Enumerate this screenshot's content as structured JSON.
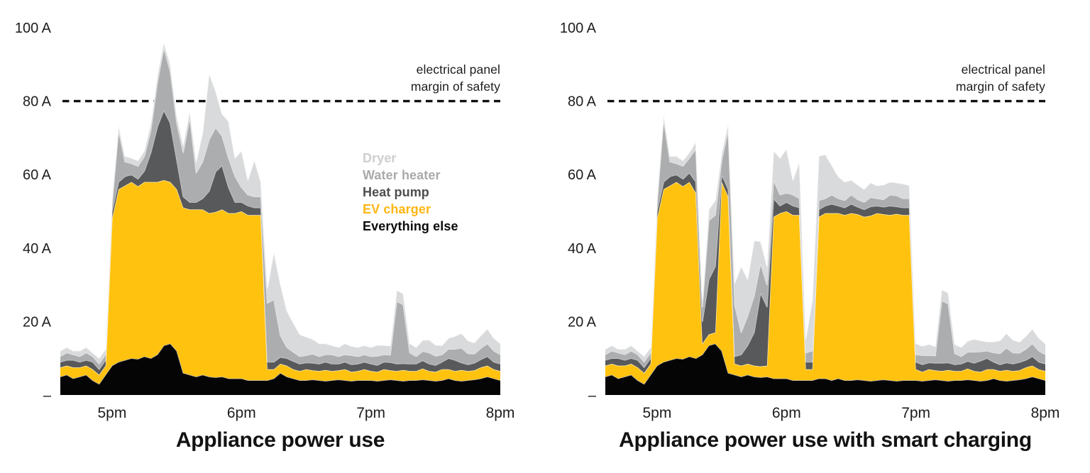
{
  "page": {
    "background": "#ffffff"
  },
  "palette": {
    "axis_text": "#1d1d1f",
    "title_text": "#121212",
    "threshold_line": "#111111",
    "band_edge_highlight": "rgba(255,255,255,0.65)"
  },
  "chart_data": [
    {
      "type": "area",
      "variant": "stacked-area",
      "title": "Appliance power use",
      "unit": "A",
      "x_domain_minutes": [
        0,
        204
      ],
      "step_minutes": 3,
      "x_ticks": [
        {
          "minute": 24,
          "label": "5pm"
        },
        {
          "minute": 84,
          "label": "6pm"
        },
        {
          "minute": 144,
          "label": "7pm"
        },
        {
          "minute": 204,
          "label": "8pm"
        }
      ],
      "y_ticks": [
        {
          "value": 100,
          "label": "100 A"
        },
        {
          "value": 80,
          "label": "80 A"
        },
        {
          "value": 60,
          "label": "60 A"
        },
        {
          "value": 40,
          "label": "40 A"
        },
        {
          "value": 20,
          "label": "20 A"
        },
        {
          "value": 0,
          "label": "–"
        }
      ],
      "ylim": [
        0,
        105
      ],
      "grid": false,
      "threshold": {
        "value": 80,
        "label_line1": "electrical panel",
        "label_line2": "margin of safety"
      },
      "legend_position": "inside-right",
      "legend": [
        {
          "label": "Dryer",
          "color": "#CDCED0"
        },
        {
          "label": "Water heater",
          "color": "#A8AAAC"
        },
        {
          "label": "Heat pump",
          "color": "#4D4E50"
        },
        {
          "label": "EV charger",
          "color": "#FFB612"
        },
        {
          "label": "Everything else",
          "color": "#0B0B0B"
        }
      ],
      "series": [
        {
          "name": "everything_else",
          "label": "Everything else",
          "color": "#050505",
          "values": [
            5,
            5.5,
            4.5,
            5,
            5.5,
            4,
            3,
            5.5,
            8,
            9,
            9.5,
            10,
            9.8,
            10.5,
            10,
            11,
            13.5,
            14,
            12,
            6,
            5.5,
            5,
            5.5,
            5,
            4.8,
            5,
            4.5,
            4.5,
            4.5,
            4,
            4,
            4,
            4,
            4.5,
            6,
            5,
            4.5,
            4,
            4,
            4.2,
            4,
            3.8,
            4,
            4.2,
            4,
            3.8,
            4,
            4,
            4,
            3.8,
            4,
            4.2,
            4,
            3.8,
            4,
            4,
            4.2,
            4,
            3.8,
            4,
            4.5,
            4,
            3.8,
            4,
            4.2,
            4.5,
            5,
            4.5,
            4
          ]
        },
        {
          "name": "ev_charger",
          "label": "EV charger",
          "color": "#FFC20E",
          "values": [
            2.5,
            2.5,
            3,
            2.5,
            2.5,
            3,
            2.5,
            2.5,
            40,
            47,
            47.5,
            48,
            47,
            47.5,
            48,
            47,
            45,
            44,
            44,
            45,
            45,
            45.5,
            45,
            44.5,
            45,
            45.5,
            45,
            45,
            45.5,
            45,
            45,
            45,
            3,
            2.5,
            2.5,
            3,
            2.5,
            2.5,
            3,
            2.5,
            2.5,
            3,
            2.5,
            2.5,
            3,
            2.5,
            2.5,
            3,
            2.5,
            2.5,
            3,
            2.5,
            2.5,
            3,
            2.5,
            2.5,
            3,
            2.5,
            2.5,
            3,
            2.5,
            2.5,
            3,
            2.5,
            2.5,
            3,
            3,
            2.5,
            2.5
          ]
        },
        {
          "name": "heat_pump",
          "label": "Heat pump",
          "color": "#58595B",
          "values": [
            1.5,
            1.5,
            2,
            1.5,
            1.5,
            2,
            1.5,
            1.5,
            2,
            2,
            2.5,
            2,
            2,
            3,
            8,
            15,
            19,
            16,
            8,
            3,
            2,
            2,
            3,
            6,
            11,
            12,
            7,
            3,
            2.5,
            2.5,
            2,
            2,
            2,
            2,
            1.8,
            2,
            2.2,
            2,
            1.8,
            2,
            2,
            2.2,
            2,
            1.8,
            2,
            2,
            2,
            2,
            2,
            1.8,
            2,
            2.2,
            2,
            1.8,
            2,
            2,
            2.2,
            2,
            1.8,
            2,
            3,
            3,
            2,
            1.8,
            2,
            2.2,
            2.5,
            2,
            2
          ]
        },
        {
          "name": "water_heater",
          "label": "Water heater",
          "color": "#ABADAF",
          "values": [
            1.5,
            2,
            1.5,
            1.5,
            2,
            1.5,
            1.5,
            1.5,
            2,
            14,
            4,
            3,
            3.5,
            4,
            6,
            12,
            17,
            14,
            10,
            12,
            23,
            8,
            10,
            14,
            12,
            8,
            8,
            7,
            4,
            3,
            3,
            3,
            16,
            17,
            6,
            3,
            2.5,
            2,
            2,
            2.5,
            2,
            2,
            2.5,
            2,
            2,
            2.5,
            2,
            2,
            2,
            2.5,
            2,
            2,
            17,
            16,
            3,
            2,
            2.5,
            3,
            2.5,
            2,
            2.5,
            3,
            4,
            3,
            2.5,
            3,
            3.5,
            3,
            2.5
          ]
        },
        {
          "name": "dryer",
          "label": "Dryer",
          "color": "#D9DADB",
          "values": [
            1.5,
            1.5,
            1,
            1.5,
            1.5,
            1,
            1.5,
            1.5,
            1.5,
            1.5,
            1.5,
            1.5,
            1.5,
            1.5,
            2,
            2,
            1.5,
            2,
            2,
            2,
            2,
            3,
            8,
            18,
            10,
            6,
            10,
            5,
            10,
            4,
            10,
            4,
            4,
            13,
            14,
            10,
            8,
            6,
            5,
            4,
            3.5,
            3,
            2.5,
            2.5,
            3,
            2.5,
            2.5,
            2.5,
            2.5,
            3,
            2.5,
            2.5,
            3,
            3,
            2.5,
            2.5,
            3,
            3.5,
            3,
            2.5,
            3,
            3.5,
            4,
            3.5,
            3,
            3.5,
            4,
            3.5,
            3
          ]
        }
      ]
    },
    {
      "type": "area",
      "variant": "stacked-area",
      "title": "Appliance power use with smart charging",
      "unit": "A",
      "x_domain_minutes": [
        0,
        204
      ],
      "step_minutes": 3,
      "x_ticks": [
        {
          "minute": 24,
          "label": "5pm"
        },
        {
          "minute": 84,
          "label": "6pm"
        },
        {
          "minute": 144,
          "label": "7pm"
        },
        {
          "minute": 204,
          "label": "8pm"
        }
      ],
      "y_ticks": [
        {
          "value": 100,
          "label": "100 A"
        },
        {
          "value": 80,
          "label": "80 A"
        },
        {
          "value": 60,
          "label": "60 A"
        },
        {
          "value": 40,
          "label": "40 A"
        },
        {
          "value": 20,
          "label": "20 A"
        },
        {
          "value": 0,
          "label": "–"
        }
      ],
      "ylim": [
        0,
        105
      ],
      "grid": false,
      "threshold": {
        "value": 80,
        "label_line1": "electrical panel",
        "label_line2": "margin of safety"
      },
      "legend": null,
      "series": [
        {
          "name": "everything_else",
          "label": "Everything else",
          "color": "#050505",
          "values": [
            5,
            5.5,
            4.5,
            5,
            5.5,
            4,
            3,
            5.5,
            8,
            9,
            9.5,
            10,
            9.8,
            10.5,
            10,
            11,
            13.5,
            14,
            12,
            6,
            5.5,
            5,
            5.5,
            5,
            4.8,
            5,
            4.5,
            4.5,
            4.5,
            4,
            4,
            4,
            4,
            4.5,
            4.5,
            4,
            4.5,
            4,
            4,
            4.2,
            4,
            3.8,
            4,
            4.2,
            4,
            3.8,
            4,
            4,
            4,
            3.8,
            4,
            4.2,
            4,
            3.8,
            4,
            4,
            4.2,
            4,
            3.8,
            4,
            4.5,
            4,
            3.8,
            4,
            4.2,
            4.5,
            5,
            4.5,
            4
          ]
        },
        {
          "name": "ev_charger",
          "label": "EV charger",
          "color": "#FFC20E",
          "values": [
            3,
            3,
            3.5,
            3,
            3,
            3.5,
            3,
            3,
            40,
            47,
            47.5,
            48,
            47,
            47.5,
            45,
            3,
            3,
            3,
            46,
            48,
            3,
            3,
            3,
            3,
            3,
            3,
            44,
            45,
            45.5,
            45,
            45,
            3,
            3,
            44,
            45,
            45.5,
            45,
            45,
            45.5,
            45,
            44.5,
            45,
            45.5,
            45,
            45,
            45.5,
            45,
            45,
            3,
            2.5,
            3,
            2.5,
            2.5,
            3,
            2.5,
            2.5,
            3,
            2.5,
            2.5,
            3,
            2.5,
            2.5,
            3,
            2.5,
            2.5,
            3,
            3,
            2.5,
            2.5
          ]
        },
        {
          "name": "heat_pump",
          "label": "Heat pump",
          "color": "#58595B",
          "values": [
            1.5,
            1.5,
            2,
            1.5,
            1.5,
            2,
            1.5,
            1.5,
            2,
            2,
            2.5,
            2,
            2,
            2.5,
            3,
            6,
            15,
            18,
            2,
            2,
            2,
            3,
            5,
            9,
            20,
            16,
            5,
            2,
            2.5,
            2.5,
            2,
            2,
            2,
            2,
            2,
            2.5,
            2,
            2,
            2.5,
            2,
            2,
            2.5,
            2,
            2,
            2.5,
            2,
            2,
            2,
            2,
            2,
            1.8,
            2,
            2.2,
            2,
            1.8,
            2,
            2,
            2.2,
            3,
            3,
            2,
            1.8,
            2,
            2,
            2.2,
            2,
            2.5,
            2,
            2
          ]
        },
        {
          "name": "water_heater",
          "label": "Water heater",
          "color": "#ABADAF",
          "values": [
            1.5,
            2,
            1.5,
            1.5,
            2,
            1.5,
            1.5,
            1.5,
            2,
            17,
            4,
            3,
            3.5,
            4,
            9,
            4,
            16,
            14,
            4,
            16,
            14,
            6,
            8,
            10,
            8,
            6,
            5,
            3,
            2.5,
            3,
            2.5,
            2.5,
            3,
            2.5,
            2,
            2.5,
            2,
            2,
            2.5,
            2,
            2,
            2.5,
            2,
            2,
            3,
            3,
            2.5,
            2.5,
            2,
            2.5,
            2,
            2,
            17,
            16,
            3,
            2,
            2.5,
            3,
            2.5,
            2,
            2.5,
            3,
            4,
            3,
            2.5,
            3,
            3.5,
            3,
            2.5
          ]
        },
        {
          "name": "dryer",
          "label": "Dryer",
          "color": "#D9DADB",
          "values": [
            1.5,
            1.5,
            1,
            1.5,
            1.5,
            1,
            1.5,
            1.5,
            1.5,
            1.5,
            1.5,
            2,
            1.5,
            1.5,
            2,
            2,
            3,
            4,
            2,
            2,
            6,
            18,
            10,
            15,
            6,
            5,
            8,
            10,
            12,
            4,
            10,
            4,
            14,
            12,
            12,
            8,
            6,
            5,
            4,
            4,
            3.5,
            4,
            3.5,
            4,
            3.5,
            3.5,
            4,
            3.5,
            3,
            2.5,
            3,
            2.5,
            3,
            3,
            2.5,
            2.5,
            3,
            3.5,
            3,
            2.5,
            3,
            3.5,
            4,
            3.5,
            3,
            3.5,
            4,
            3.5,
            3
          ]
        }
      ]
    }
  ]
}
